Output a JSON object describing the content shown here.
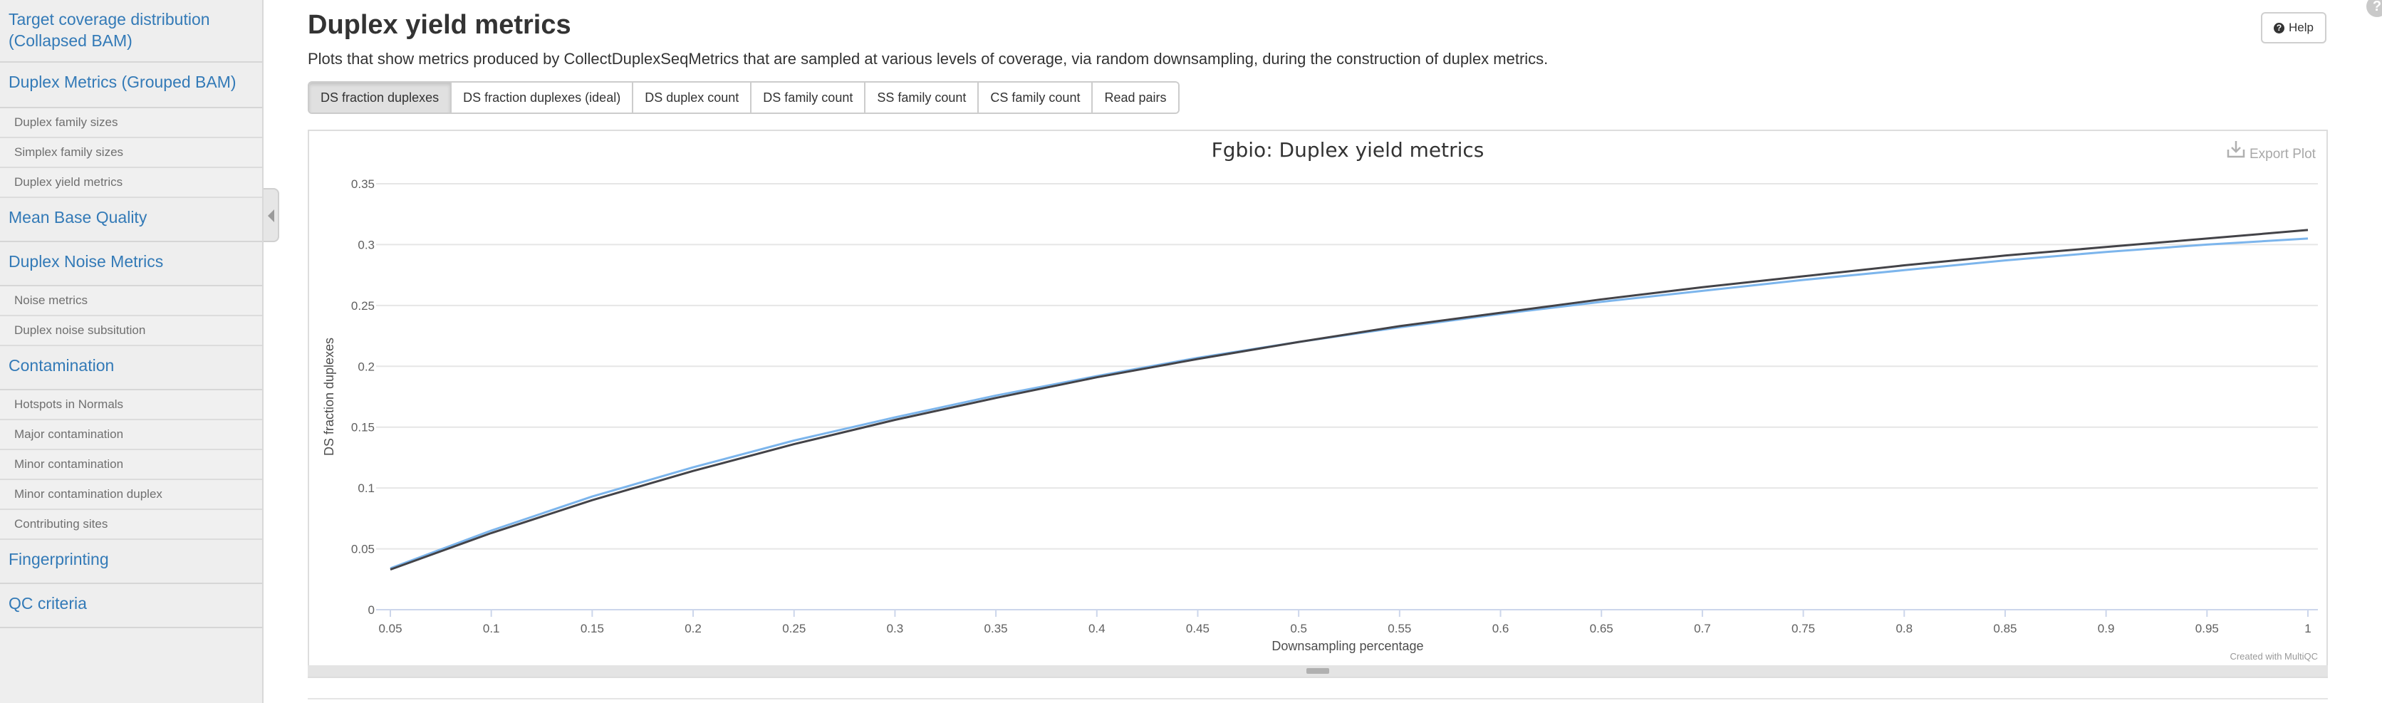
{
  "sidebar": {
    "entries": [
      {
        "kind": "section",
        "label": "Target coverage distribution (Collapsed BAM)"
      },
      {
        "kind": "section",
        "label": "Duplex Metrics (Grouped BAM)"
      },
      {
        "kind": "item",
        "label": "Duplex family sizes"
      },
      {
        "kind": "item",
        "label": "Simplex family sizes"
      },
      {
        "kind": "item",
        "label": "Duplex yield metrics"
      },
      {
        "kind": "section",
        "label": "Mean Base Quality"
      },
      {
        "kind": "section",
        "label": "Duplex Noise Metrics"
      },
      {
        "kind": "item",
        "label": "Noise metrics"
      },
      {
        "kind": "item",
        "label": "Duplex noise subsitution"
      },
      {
        "kind": "section",
        "label": "Contamination"
      },
      {
        "kind": "item",
        "label": "Hotspots in Normals"
      },
      {
        "kind": "item",
        "label": "Major contamination"
      },
      {
        "kind": "item",
        "label": "Minor contamination"
      },
      {
        "kind": "item",
        "label": "Minor contamination duplex"
      },
      {
        "kind": "item",
        "label": "Contributing sites"
      },
      {
        "kind": "section",
        "label": "Fingerprinting"
      },
      {
        "kind": "section",
        "label": "QC criteria"
      }
    ]
  },
  "main": {
    "title": "Duplex yield metrics",
    "description": "Plots that show metrics produced by CollectDuplexSeqMetrics that are sampled at various levels of coverage, via random downsampling, during the construction of duplex metrics.",
    "help_label": "Help",
    "tabs": [
      {
        "label": "DS fraction duplexes",
        "active": true
      },
      {
        "label": "DS fraction duplexes (ideal)",
        "active": false
      },
      {
        "label": "DS duplex count",
        "active": false
      },
      {
        "label": "DS family count",
        "active": false
      },
      {
        "label": "SS family count",
        "active": false
      },
      {
        "label": "CS family count",
        "active": false
      },
      {
        "label": "Read pairs",
        "active": false
      }
    ],
    "export_label": "Export Plot",
    "credit": "Created with MultiQC"
  },
  "chart_data": {
    "type": "line",
    "title": "Fgbio: Duplex yield metrics",
    "xlabel": "Downsampling percentage",
    "ylabel": "DS fraction duplexes",
    "xlim": [
      0.05,
      1
    ],
    "ylim": [
      0,
      0.35
    ],
    "x_ticks": [
      "0.05",
      "0.1",
      "0.15",
      "0.2",
      "0.25",
      "0.3",
      "0.35",
      "0.4",
      "0.45",
      "0.5",
      "0.55",
      "0.6",
      "0.65",
      "0.7",
      "0.75",
      "0.8",
      "0.85",
      "0.9",
      "0.95",
      "1"
    ],
    "y_ticks": [
      "0",
      "0.05",
      "0.1",
      "0.15",
      "0.2",
      "0.25",
      "0.3",
      "0.35"
    ],
    "grid": true,
    "legend": "none",
    "x": [
      0.05,
      0.1,
      0.15,
      0.2,
      0.25,
      0.3,
      0.35,
      0.4,
      0.45,
      0.5,
      0.55,
      0.6,
      0.65,
      0.7,
      0.75,
      0.8,
      0.85,
      0.9,
      0.95,
      1
    ],
    "series": [
      {
        "color": "#7cb5ec",
        "values": [
          0.034,
          0.065,
          0.093,
          0.117,
          0.139,
          0.158,
          0.176,
          0.192,
          0.207,
          0.22,
          0.232,
          0.243,
          0.253,
          0.262,
          0.271,
          0.279,
          0.287,
          0.294,
          0.3,
          0.305
        ]
      },
      {
        "color": "#434348",
        "values": [
          0.033,
          0.063,
          0.09,
          0.114,
          0.136,
          0.156,
          0.174,
          0.191,
          0.206,
          0.22,
          0.233,
          0.244,
          0.255,
          0.265,
          0.274,
          0.283,
          0.291,
          0.298,
          0.305,
          0.312
        ]
      }
    ]
  }
}
